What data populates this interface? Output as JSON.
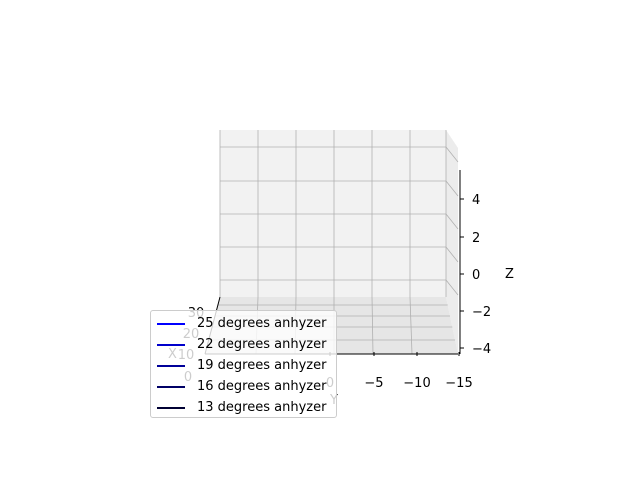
{
  "chart_data": {
    "type": "line",
    "projection": "3d",
    "title": "",
    "xlabel": "X",
    "ylabel": "Y",
    "zlabel": "Z",
    "x_ticks": [
      "0",
      "10",
      "20",
      "30"
    ],
    "y_ticks": [
      "0",
      "−5",
      "−10",
      "−15"
    ],
    "z_ticks": [
      "−4",
      "−2",
      "0",
      "2",
      "4"
    ],
    "grid": true,
    "legend_position": "lower-left",
    "series": [
      {
        "name": "25 degrees anhyzer",
        "color": "#0000ff"
      },
      {
        "name": "22 degrees anhyzer",
        "color": "#0000cc"
      },
      {
        "name": "19 degrees anhyzer",
        "color": "#000099"
      },
      {
        "name": "16 degrees anhyzer",
        "color": "#000066"
      },
      {
        "name": "13 degrees anhyzer",
        "color": "#000033"
      }
    ]
  }
}
